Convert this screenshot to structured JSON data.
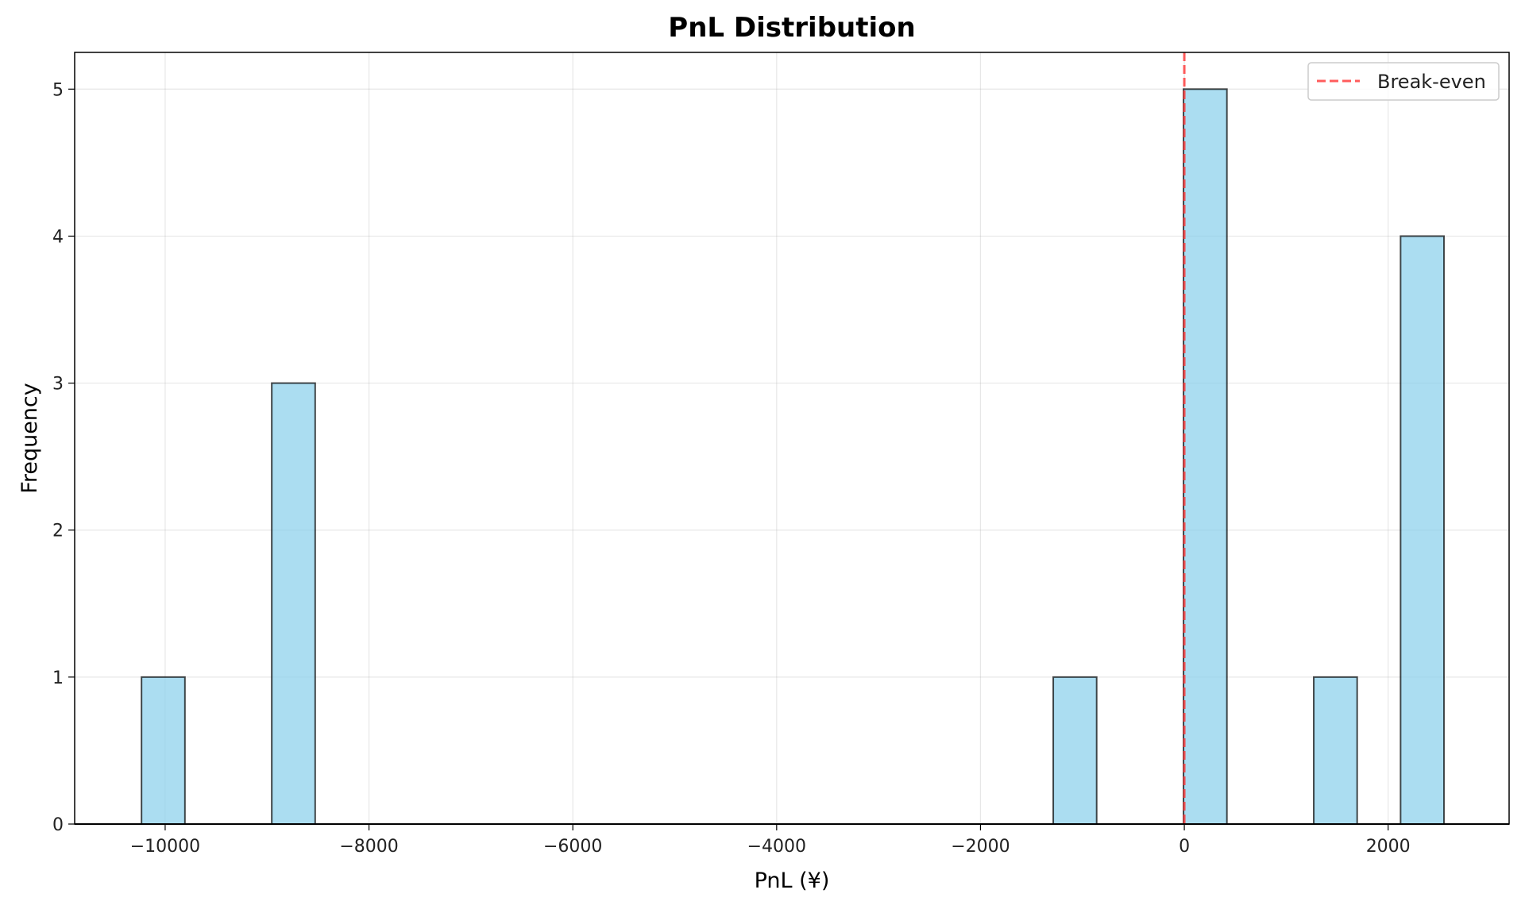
{
  "chart_data": {
    "type": "bar",
    "subtype": "histogram",
    "title": "PnL Distribution",
    "xlabel": "PnL (¥)",
    "ylabel": "Frequency",
    "xlim": [
      -10888,
      3187
    ],
    "ylim": [
      0,
      5.25
    ],
    "xticks": [
      -10000,
      -8000,
      -6000,
      -4000,
      -2000,
      0,
      2000
    ],
    "xtick_labels": [
      "−10000",
      "−8000",
      "−6000",
      "−4000",
      "−2000",
      "0",
      "2000"
    ],
    "yticks": [
      0,
      1,
      2,
      3,
      4,
      5
    ],
    "ytick_labels": [
      "0",
      "1",
      "2",
      "3",
      "4",
      "5"
    ],
    "grid": true,
    "bins": [
      {
        "start": -10232,
        "end": -9806,
        "count": 1
      },
      {
        "start": -8954,
        "end": -8528,
        "count": 3
      },
      {
        "start": -1286,
        "end": -860,
        "count": 1
      },
      {
        "start": -8,
        "end": 418,
        "count": 5
      },
      {
        "start": 1270,
        "end": 1696,
        "count": 1
      },
      {
        "start": 2122,
        "end": 2548,
        "count": 4
      }
    ],
    "bar_color": "#87ceeb",
    "bar_edge_color": "#000000",
    "reference_line": {
      "x": 0,
      "label": "Break-even",
      "color": "#ff3333",
      "style": "dashed"
    },
    "legend": {
      "placement": "top-right",
      "entries": [
        "Break-even"
      ]
    }
  }
}
